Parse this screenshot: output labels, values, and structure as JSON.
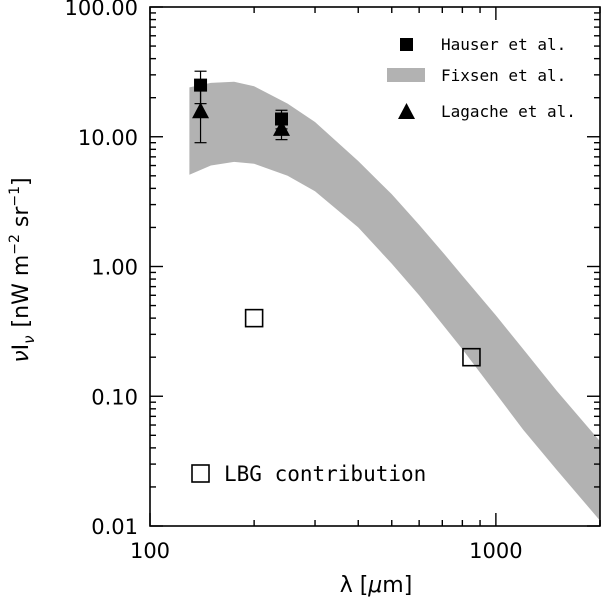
{
  "chart_data": {
    "type": "scatter",
    "xscale": "log",
    "yscale": "log",
    "xlim": [
      100,
      2000
    ],
    "ylim": [
      0.01,
      100
    ],
    "xlabel": {
      "main": "λ [",
      "greek": "μ",
      "rest": "m]"
    },
    "ylabel": {
      "nu": "ν",
      "I": "I",
      "sub": "ν",
      "units": "[nW m",
      "exp1": "−2",
      "sr": " sr",
      "exp2": "−1",
      "close": "]"
    },
    "x_ticks": [
      {
        "value": 100,
        "label": "100"
      },
      {
        "value": 1000,
        "label": "1000"
      }
    ],
    "y_ticks": [
      {
        "value": 0.01,
        "label": "0.01"
      },
      {
        "value": 0.1,
        "label": "0.10"
      },
      {
        "value": 1,
        "label": "1.00"
      },
      {
        "value": 10,
        "label": "10.00"
      },
      {
        "value": 100,
        "label": "100.00"
      }
    ],
    "legend": {
      "position": "top-right",
      "entries": [
        {
          "label": "Hauser et al.",
          "marker": "filled-square"
        },
        {
          "label": "Fixsen et al.",
          "marker": "band"
        },
        {
          "label": "Lagache et al.",
          "marker": "filled-triangle"
        }
      ]
    },
    "series": [
      {
        "name": "Hauser et al.",
        "marker": "filled-square",
        "points": [
          {
            "x": 140,
            "y": 25,
            "y_low": 18,
            "y_high": 32
          },
          {
            "x": 240,
            "y": 13.7,
            "y_low": 11.5,
            "y_high": 16
          }
        ]
      },
      {
        "name": "Lagache et al.",
        "marker": "filled-triangle",
        "points": [
          {
            "x": 140,
            "y": 16,
            "y_low": 9,
            "y_high": 23
          },
          {
            "x": 240,
            "y": 11.7,
            "y_low": 9.5,
            "y_high": 13.5
          }
        ]
      },
      {
        "name": "LBG contribution",
        "marker": "open-square",
        "points": [
          {
            "x": 200,
            "y": 0.4
          },
          {
            "x": 850,
            "y": 0.2
          }
        ]
      }
    ],
    "band": {
      "name": "Fixsen et al.",
      "color": "#b2b2b2",
      "upper": [
        [
          130,
          24
        ],
        [
          150,
          26
        ],
        [
          175,
          26.5
        ],
        [
          200,
          24.5
        ],
        [
          250,
          18
        ],
        [
          300,
          13
        ],
        [
          400,
          6.5
        ],
        [
          500,
          3.6
        ],
        [
          600,
          2.1
        ],
        [
          700,
          1.3
        ],
        [
          800,
          0.85
        ],
        [
          1000,
          0.42
        ],
        [
          1200,
          0.23
        ],
        [
          1500,
          0.11
        ],
        [
          2000,
          0.045
        ]
      ],
      "lower": [
        [
          130,
          5.1
        ],
        [
          150,
          6.0
        ],
        [
          175,
          6.4
        ],
        [
          200,
          6.2
        ],
        [
          250,
          5.0
        ],
        [
          300,
          3.8
        ],
        [
          400,
          2.0
        ],
        [
          500,
          1.05
        ],
        [
          600,
          0.6
        ],
        [
          700,
          0.36
        ],
        [
          800,
          0.23
        ],
        [
          1000,
          0.105
        ],
        [
          1200,
          0.055
        ],
        [
          1500,
          0.027
        ],
        [
          2000,
          0.011
        ]
      ]
    },
    "annotation": {
      "text": "LBG contribution",
      "marker": "open-square"
    },
    "colors": {
      "band": "#b2b2b2",
      "ink": "#000000"
    }
  }
}
